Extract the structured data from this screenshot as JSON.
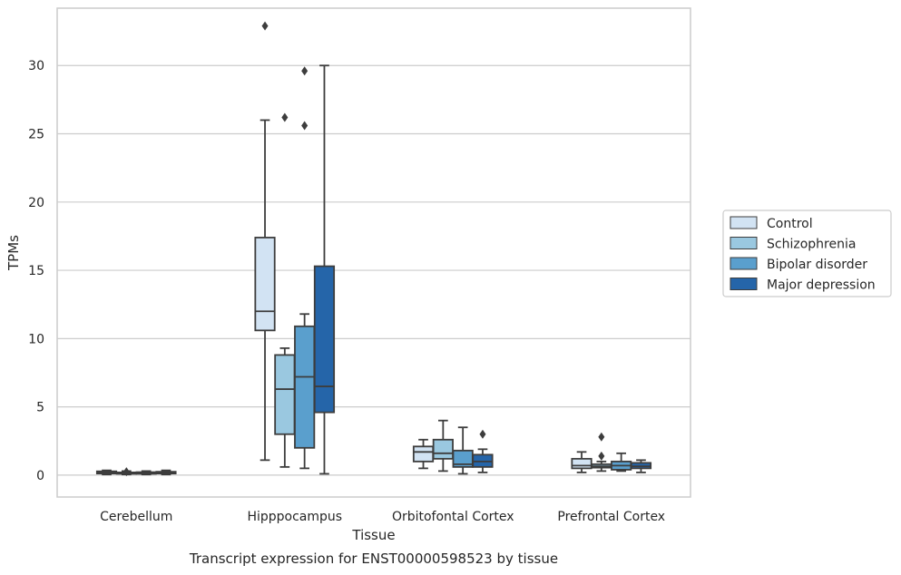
{
  "caption": "Transcript expression for ENST00000598523 by tissue",
  "chart_data": {
    "type": "box",
    "xlabel": "Tissue",
    "ylabel": "TPMs",
    "ylim": [
      -1.6,
      34.2
    ],
    "yticks": [
      0,
      5,
      10,
      15,
      20,
      25,
      30
    ],
    "categories": [
      "Cerebellum",
      "Hipppocampus",
      "Orbitofontal Cortex",
      "Prefrontal Cortex"
    ],
    "grid": "horizontal",
    "legend_position": "right",
    "series": [
      {
        "name": "Control",
        "color": "#d2e3f3",
        "boxes": [
          {
            "whislo": 0.05,
            "q1": 0.12,
            "med": 0.2,
            "q3": 0.28,
            "whishi": 0.35,
            "fliers": []
          },
          {
            "whislo": 1.1,
            "q1": 10.6,
            "med": 12.0,
            "q3": 17.4,
            "whishi": 26.0,
            "fliers": [
              32.9
            ]
          },
          {
            "whislo": 0.5,
            "q1": 1.0,
            "med": 1.7,
            "q3": 2.1,
            "whishi": 2.6,
            "fliers": []
          },
          {
            "whislo": 0.2,
            "q1": 0.5,
            "med": 0.7,
            "q3": 1.2,
            "whishi": 1.7,
            "fliers": []
          }
        ]
      },
      {
        "name": "Schizophrenia",
        "color": "#9ac8e0",
        "boxes": [
          {
            "whislo": 0.05,
            "q1": 0.1,
            "med": 0.15,
            "q3": 0.2,
            "whishi": 0.3,
            "fliers": [
              0.25
            ]
          },
          {
            "whislo": 0.6,
            "q1": 3.0,
            "med": 6.3,
            "q3": 8.8,
            "whishi": 9.3,
            "fliers": [
              26.2
            ]
          },
          {
            "whislo": 0.3,
            "q1": 1.2,
            "med": 1.6,
            "q3": 2.6,
            "whishi": 4.0,
            "fliers": []
          },
          {
            "whislo": 0.3,
            "q1": 0.55,
            "med": 0.65,
            "q3": 0.8,
            "whishi": 1.0,
            "fliers": [
              1.4,
              2.8
            ]
          }
        ]
      },
      {
        "name": "Bipolar disorder",
        "color": "#5a9fcd",
        "boxes": [
          {
            "whislo": 0.05,
            "q1": 0.1,
            "med": 0.15,
            "q3": 0.22,
            "whishi": 0.3,
            "fliers": []
          },
          {
            "whislo": 0.5,
            "q1": 2.0,
            "med": 7.2,
            "q3": 10.9,
            "whishi": 11.8,
            "fliers": [
              25.6,
              29.6
            ]
          },
          {
            "whislo": 0.1,
            "q1": 0.6,
            "med": 0.8,
            "q3": 1.8,
            "whishi": 3.5,
            "fliers": []
          },
          {
            "whislo": 0.3,
            "q1": 0.4,
            "med": 0.7,
            "q3": 1.0,
            "whishi": 1.6,
            "fliers": []
          }
        ]
      },
      {
        "name": "Major depression",
        "color": "#2565a9",
        "boxes": [
          {
            "whislo": 0.05,
            "q1": 0.12,
            "med": 0.18,
            "q3": 0.25,
            "whishi": 0.35,
            "fliers": []
          },
          {
            "whislo": 0.1,
            "q1": 4.6,
            "med": 6.5,
            "q3": 15.3,
            "whishi": 30.0,
            "fliers": []
          },
          {
            "whislo": 0.2,
            "q1": 0.6,
            "med": 1.0,
            "q3": 1.5,
            "whishi": 1.9,
            "fliers": [
              3.0
            ]
          },
          {
            "whislo": 0.2,
            "q1": 0.5,
            "med": 0.65,
            "q3": 0.9,
            "whishi": 1.1,
            "fliers": []
          }
        ]
      }
    ]
  }
}
